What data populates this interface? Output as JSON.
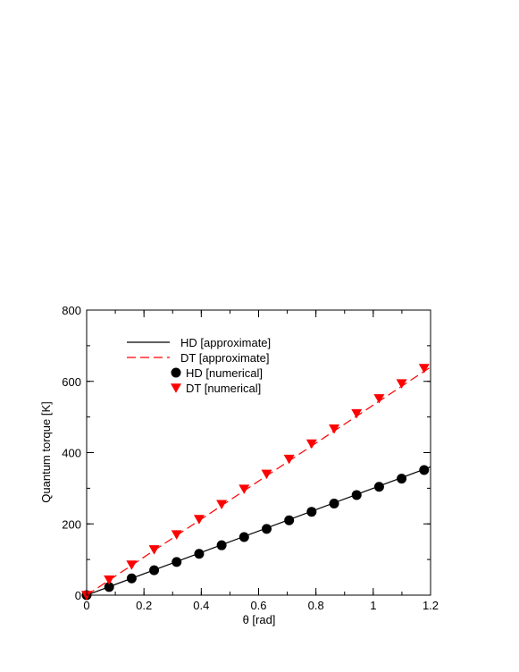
{
  "chart_data": {
    "type": "line",
    "xlabel": "θ [rad]",
    "ylabel": "Quantum torque [K]",
    "xlim": [
      0,
      1.2
    ],
    "ylim": [
      0,
      800
    ],
    "x_ticks": [
      {
        "value": 0,
        "label": "0"
      },
      {
        "value": 0.2,
        "label": "0.2"
      },
      {
        "value": 0.4,
        "label": "0.4"
      },
      {
        "value": 0.6,
        "label": "0.6"
      },
      {
        "value": 0.8,
        "label": "0.8"
      },
      {
        "value": 1.0,
        "label": "1"
      },
      {
        "value": 1.2,
        "label": "1.2"
      }
    ],
    "y_ticks": [
      {
        "value": 0,
        "label": "0"
      },
      {
        "value": 200,
        "label": "200"
      },
      {
        "value": 400,
        "label": "400"
      },
      {
        "value": 600,
        "label": "600"
      },
      {
        "value": 800,
        "label": "800"
      }
    ],
    "x_minor_step": 0.1,
    "y_minor_step": 100,
    "grid": false,
    "legend_position": "top-left",
    "series": [
      {
        "name": "HD [approximate]",
        "style": "solid-line",
        "color": "#000000",
        "x": [
          0,
          1.2
        ],
        "y": [
          0,
          360
        ]
      },
      {
        "name": "DT [approximate]",
        "style": "dashed-line",
        "color": "#ff0000",
        "x": [
          0,
          1.2
        ],
        "y": [
          0,
          640
        ]
      },
      {
        "name": "HD [numerical]",
        "style": "circle-marker",
        "color": "#000000",
        "x": [
          0,
          0.0785,
          0.157,
          0.2355,
          0.314,
          0.3925,
          0.471,
          0.5495,
          0.628,
          0.7065,
          0.785,
          0.8635,
          0.942,
          1.0205,
          1.099,
          1.1775
        ],
        "y": [
          0,
          23,
          47,
          70,
          93,
          116,
          140,
          163,
          186,
          210,
          234,
          257,
          281,
          304,
          327,
          351
        ]
      },
      {
        "name": "DT [numerical]",
        "style": "triangle-down-marker",
        "color": "#ff0000",
        "x": [
          0,
          0.0785,
          0.157,
          0.2355,
          0.314,
          0.3925,
          0.471,
          0.5495,
          0.628,
          0.7065,
          0.785,
          0.8635,
          0.942,
          1.0205,
          1.099,
          1.1775
        ],
        "y": [
          0,
          43,
          85,
          128,
          170,
          213,
          255,
          298,
          340,
          382,
          425,
          467,
          510,
          552,
          594,
          637
        ]
      }
    ]
  }
}
